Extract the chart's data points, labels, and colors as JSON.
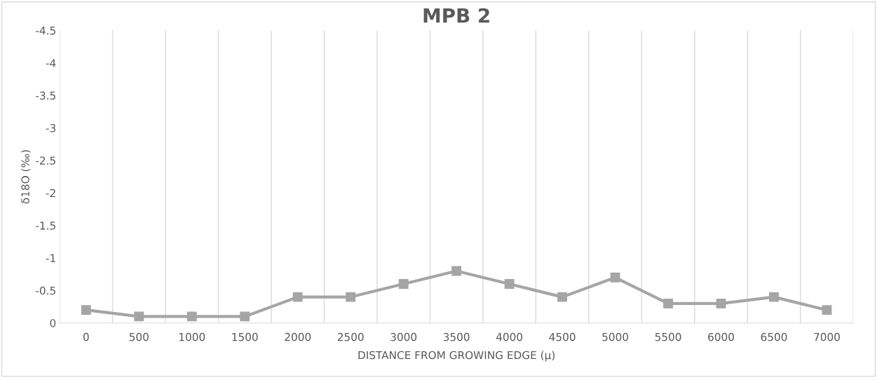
{
  "chart_data": {
    "type": "line",
    "title": "MPB 2",
    "xlabel": "DISTANCE FROM GROWING EDGE (μ)",
    "ylabel": "δ18O (‰)",
    "categories": [
      "0",
      "500",
      "1000",
      "1500",
      "2000",
      "2500",
      "3000",
      "3500",
      "4000",
      "4500",
      "5000",
      "5500",
      "6000",
      "6500",
      "7000"
    ],
    "series": [
      {
        "color": "#a5a5a5",
        "values": [
          -0.2,
          -0.1,
          -0.1,
          -0.1,
          -0.4,
          -0.4,
          -0.6,
          -0.8,
          -0.6,
          -0.4,
          -0.7,
          -0.3,
          -0.3,
          -0.4,
          -0.2
        ]
      }
    ],
    "ylim": [
      0,
      -4.5
    ],
    "yticks": [
      {
        "value": 0,
        "label": "0"
      },
      {
        "value": -0.5,
        "label": "-0.5"
      },
      {
        "value": -1,
        "label": "-1"
      },
      {
        "value": -1.5,
        "label": "-1.5"
      },
      {
        "value": -2,
        "label": "-2"
      },
      {
        "value": -2.5,
        "label": "-2.5"
      },
      {
        "value": -3,
        "label": "-3"
      },
      {
        "value": -3.5,
        "label": "-3.5"
      },
      {
        "value": -4,
        "label": "-4"
      },
      {
        "value": -4.5,
        "label": "-4.5"
      }
    ],
    "grid": "x",
    "marker": "square",
    "line_style": "solid",
    "legend": false
  }
}
